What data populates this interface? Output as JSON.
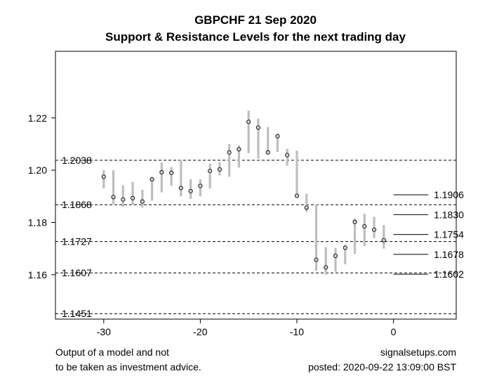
{
  "chart_data": {
    "type": "range-bar",
    "title": "GBPCHF 21 Sep 2020",
    "subtitle": "Support & Resistance Levels for the next trading day",
    "xlabel": "",
    "ylabel": "",
    "xlim": [
      -35,
      6.5
    ],
    "ylim": [
      1.143,
      1.2455
    ],
    "x_ticks": [
      -30,
      -20,
      -10,
      0
    ],
    "y_ticks": [
      1.16,
      1.18,
      1.2,
      1.22
    ],
    "y_tick_labels": [
      "1.16",
      "1.18",
      "1.20",
      "1.22"
    ],
    "bars": [
      {
        "x": -30,
        "low": 1.193,
        "high": 1.2,
        "close": 1.1975
      },
      {
        "x": -29,
        "low": 1.187,
        "high": 1.2,
        "close": 1.1897
      },
      {
        "x": -28,
        "low": 1.186,
        "high": 1.1942,
        "close": 1.1888
      },
      {
        "x": -27,
        "low": 1.1867,
        "high": 1.1955,
        "close": 1.1893
      },
      {
        "x": -26,
        "low": 1.1857,
        "high": 1.1925,
        "close": 1.188
      },
      {
        "x": -25,
        "low": 1.1883,
        "high": 1.1975,
        "close": 1.1965
      },
      {
        "x": -24,
        "low": 1.1915,
        "high": 1.203,
        "close": 1.1992
      },
      {
        "x": -23,
        "low": 1.194,
        "high": 1.2012,
        "close": 1.199
      },
      {
        "x": -22,
        "low": 1.19,
        "high": 1.204,
        "close": 1.1932
      },
      {
        "x": -21,
        "low": 1.189,
        "high": 1.1965,
        "close": 1.192
      },
      {
        "x": -20,
        "low": 1.19,
        "high": 1.1965,
        "close": 1.194
      },
      {
        "x": -19,
        "low": 1.193,
        "high": 1.2025,
        "close": 1.1997
      },
      {
        "x": -18,
        "low": 1.198,
        "high": 1.203,
        "close": 1.2003
      },
      {
        "x": -17,
        "low": 1.1975,
        "high": 1.21,
        "close": 1.2068
      },
      {
        "x": -16,
        "low": 1.201,
        "high": 1.2095,
        "close": 1.208
      },
      {
        "x": -15,
        "low": 1.2065,
        "high": 1.2228,
        "close": 1.2185
      },
      {
        "x": -14,
        "low": 1.2045,
        "high": 1.2197,
        "close": 1.2163
      },
      {
        "x": -13,
        "low": 1.206,
        "high": 1.2165,
        "close": 1.2068
      },
      {
        "x": -12,
        "low": 1.207,
        "high": 1.214,
        "close": 1.213
      },
      {
        "x": -11,
        "low": 1.2017,
        "high": 1.2082,
        "close": 1.2058
      },
      {
        "x": -10,
        "low": 1.19,
        "high": 1.2075,
        "close": 1.1902
      },
      {
        "x": -9,
        "low": 1.184,
        "high": 1.191,
        "close": 1.1857
      },
      {
        "x": -8,
        "low": 1.1615,
        "high": 1.187,
        "close": 1.1657
      },
      {
        "x": -7,
        "low": 1.16,
        "high": 1.1705,
        "close": 1.1628
      },
      {
        "x": -6,
        "low": 1.1612,
        "high": 1.1703,
        "close": 1.1672
      },
      {
        "x": -5,
        "low": 1.164,
        "high": 1.1715,
        "close": 1.1703
      },
      {
        "x": -4,
        "low": 1.168,
        "high": 1.1815,
        "close": 1.1802
      },
      {
        "x": -3,
        "low": 1.171,
        "high": 1.1833,
        "close": 1.1785
      },
      {
        "x": -2,
        "low": 1.174,
        "high": 1.1822,
        "close": 1.1772
      },
      {
        "x": -1,
        "low": 1.17,
        "high": 1.179,
        "close": 1.1732
      }
    ],
    "support_resistance_levels": [
      {
        "value": 1.2038,
        "label": "1.2038"
      },
      {
        "value": 1.1868,
        "label": "1.1868"
      },
      {
        "value": 1.1727,
        "label": "1.1727"
      },
      {
        "value": 1.1607,
        "label": "1.1607"
      },
      {
        "value": 1.1451,
        "label": "1.1451"
      }
    ],
    "forecast_levels": [
      {
        "value": 1.1906,
        "label": "1.1906"
      },
      {
        "value": 1.183,
        "label": "1.1830"
      },
      {
        "value": 1.1754,
        "label": "1.1754"
      },
      {
        "value": 1.1678,
        "label": "1.1678"
      },
      {
        "value": 1.1602,
        "label": "1.1602"
      }
    ],
    "colors": {
      "bar": "#bebebe",
      "close_fill": "#d3d3d3",
      "line": "#000000"
    }
  },
  "footer": {
    "disclaimer_line1": "Output of a model and not",
    "disclaimer_line2": "to be taken as investment advice.",
    "site": "signalsetups.com",
    "posted": "posted: 2020-09-22 13:09:00 BST"
  }
}
